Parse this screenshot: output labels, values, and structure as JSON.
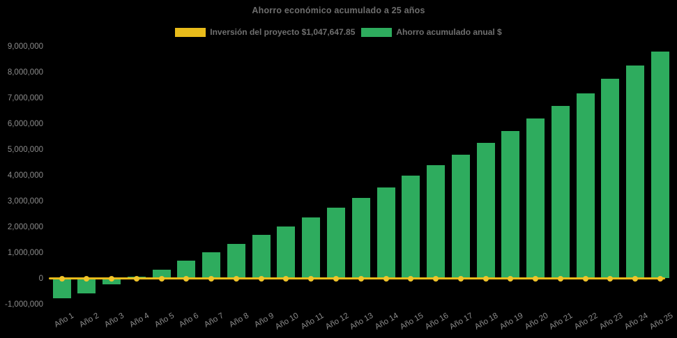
{
  "title": "Ahorro económico acumulado a 25 años",
  "legend": [
    {
      "label": "Inversión del proyecto $1,047,647.85",
      "color": "#e9bc1b",
      "swatch": "yellow-rect"
    },
    {
      "label": "Ahorro acumulado anual $",
      "color": "#2eac5e",
      "swatch": "green-rect"
    }
  ],
  "colors": {
    "background": "#000000",
    "bar_green": "#2eac5e",
    "line_gold": "#e9bc1b",
    "marker_gold": "#f0c42a",
    "tick_text": "#8c8c8c",
    "title_text": "#6e6e6e"
  },
  "chart_data": {
    "type": "bar",
    "title": "Ahorro económico acumulado a 25 años",
    "xlabel": "",
    "ylabel": "",
    "ylim": [
      -1000000,
      9000000
    ],
    "grid": false,
    "legend_position": "top",
    "background": "#000000",
    "categories": [
      "Año 1",
      "Año 2",
      "Año 3",
      "Año 4",
      "Año 5",
      "Año 6",
      "Año 7",
      "Año 8",
      "Año 9",
      "Año 10",
      "Año 11",
      "Año 12",
      "Año 13",
      "Año 14",
      "Año 15",
      "Año 16",
      "Año 17",
      "Año 18",
      "Año 19",
      "Año 20",
      "Año 21",
      "Año 22",
      "Año 23",
      "Año 24",
      "Año 25"
    ],
    "y_ticks": [
      {
        "label": "9,000,000",
        "value": 9000000
      },
      {
        "label": "8,000,000",
        "value": 8000000
      },
      {
        "label": "7,000,000",
        "value": 7000000
      },
      {
        "label": "6,000,000",
        "value": 6000000
      },
      {
        "label": "5,000,000",
        "value": 5000000
      },
      {
        "label": "4,000,000",
        "value": 4000000
      },
      {
        "label": "3,000,000",
        "value": 3000000
      },
      {
        "label": "2,000,000",
        "value": 2000000
      },
      {
        "label": "1,000,000",
        "value": 1000000
      },
      {
        "label": "0",
        "value": 0
      },
      {
        "label": "-1,000,000",
        "value": -1000000
      }
    ],
    "series": [
      {
        "name": "Inversión del proyecto $1,047,647.85",
        "type": "line",
        "color": "#e9bc1b",
        "investment_value": 1047647.85,
        "plotted_at": 0,
        "markers": true
      },
      {
        "name": "Ahorro acumulado anual $",
        "type": "bar",
        "color": "#2eac5e",
        "values": [
          -770000,
          -580000,
          -240000,
          70000,
          350000,
          680000,
          1010000,
          1350000,
          1700000,
          2010000,
          2370000,
          2750000,
          3120000,
          3530000,
          3980000,
          4390000,
          4810000,
          5260000,
          5720000,
          6200000,
          6680000,
          7180000,
          7730000,
          8250000,
          8810000
        ]
      }
    ]
  }
}
